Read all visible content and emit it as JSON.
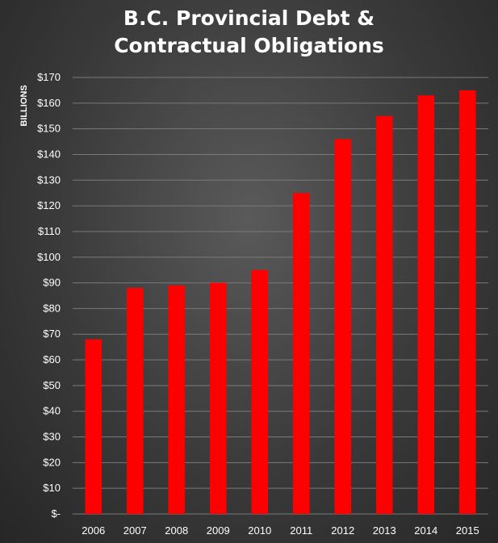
{
  "chart_data": {
    "type": "bar",
    "title_lines": [
      "B.C. Provincial Debt &",
      "Contractual Obligations"
    ],
    "ylabel": "BILLIONS",
    "xlabel": "",
    "categories": [
      "2006",
      "2007",
      "2008",
      "2009",
      "2010",
      "2011",
      "2012",
      "2013",
      "2014",
      "2015"
    ],
    "values": [
      68,
      88,
      89,
      90,
      95,
      125,
      146,
      155,
      163,
      165
    ],
    "ylim": [
      0,
      170
    ],
    "yticks": [
      0,
      10,
      20,
      30,
      40,
      50,
      60,
      70,
      80,
      90,
      100,
      110,
      120,
      130,
      140,
      150,
      160,
      170
    ],
    "ytick_labels": [
      "$-",
      "$10",
      "$20",
      "$30",
      "$40",
      "$50",
      "$60",
      "$70",
      "$80",
      "$90",
      "$100",
      "$110",
      "$120",
      "$130",
      "$140",
      "$150",
      "$160",
      "$170"
    ],
    "grid": true,
    "legend": "none",
    "bar_color": "#ff0000",
    "grid_color": "#7a7a7a"
  }
}
